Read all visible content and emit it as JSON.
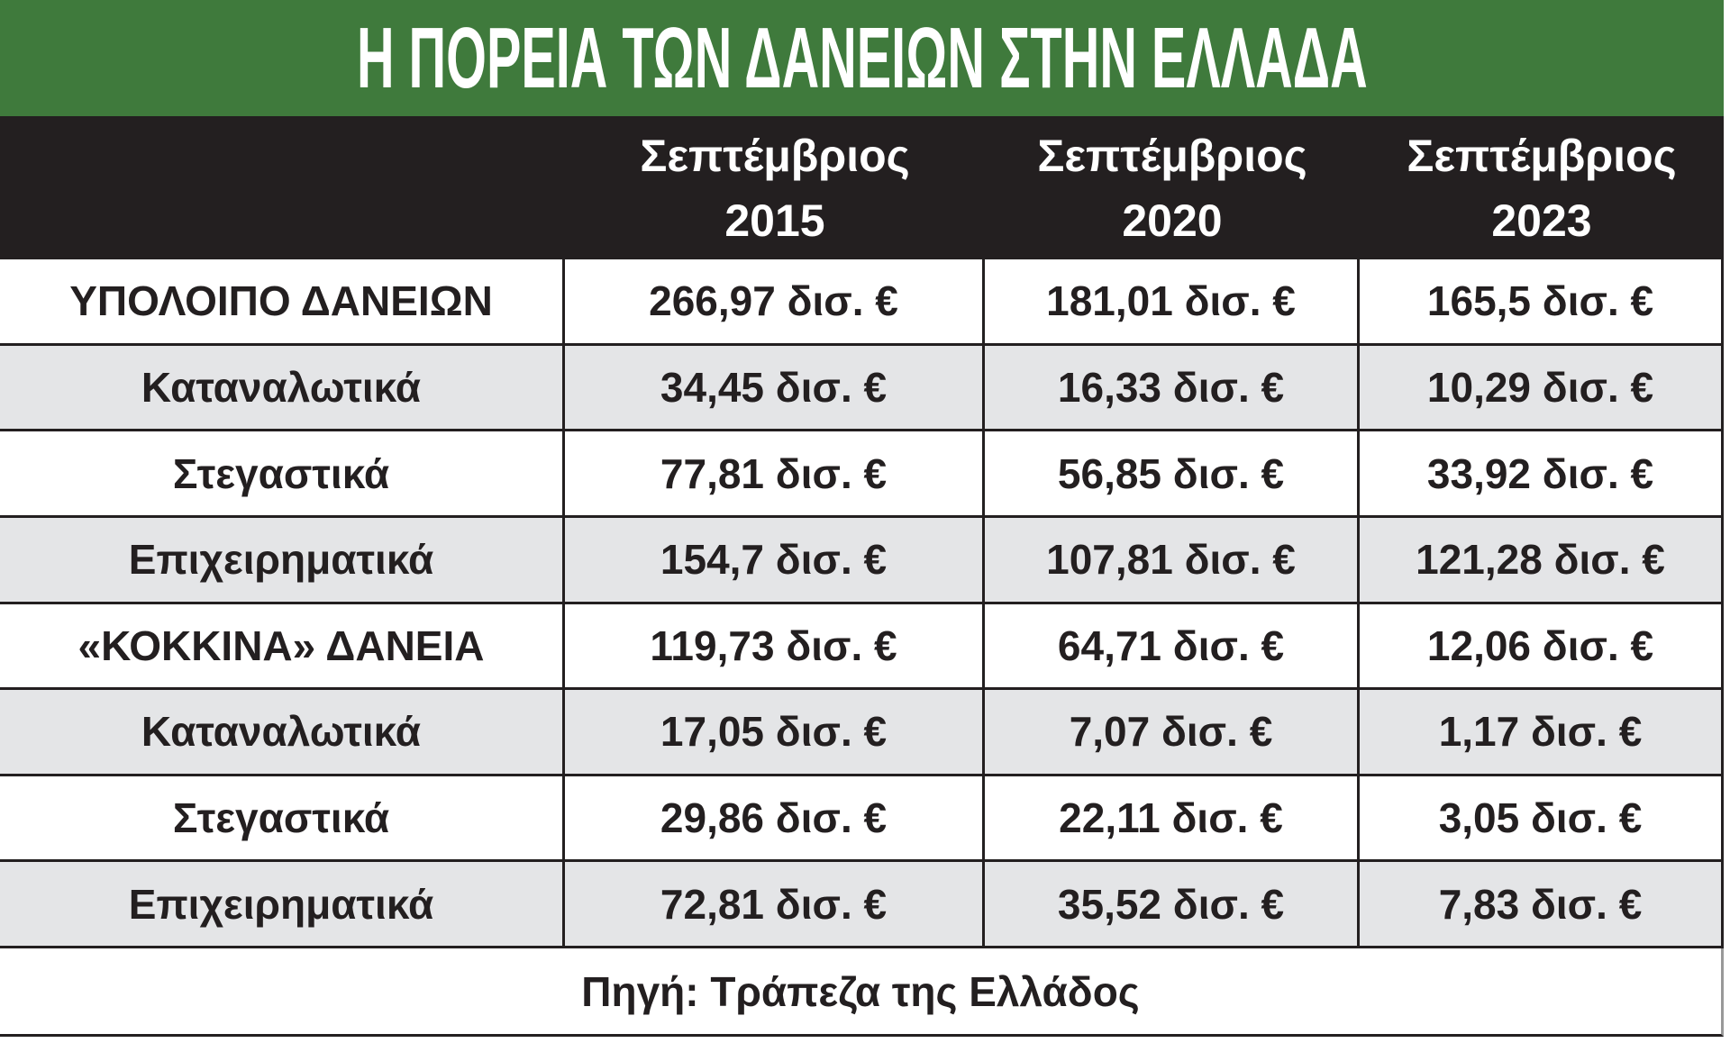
{
  "header": {
    "title": "Η ΠΟΡΕΙΑ ΤΩΝ ΔΑΝΕΙΩΝ ΣΤΗΝ ΕΛΛΑΔΑ"
  },
  "table": {
    "columns": [
      {
        "month": "Σεπτέμβριος",
        "year": "2015"
      },
      {
        "month": "Σεπτέμβριος",
        "year": "2020"
      },
      {
        "month": "Σεπτέμβριος",
        "year": "2023"
      }
    ],
    "rows": [
      [
        "ΥΠΟΛΟΙΠΟ ΔΑΝΕΙΩΝ",
        "266,97 δισ. €",
        "181,01 δισ. €",
        "165,5 δισ. €"
      ],
      [
        "Καταναλωτικά",
        "34,45 δισ. €",
        "16,33 δισ. €",
        "10,29 δισ. €"
      ],
      [
        "Στεγαστικά",
        "77,81 δισ. €",
        "56,85 δισ. €",
        "33,92 δισ. €"
      ],
      [
        "Επιχειρηματικά",
        "154,7 δισ. €",
        "107,81 δισ. €",
        "121,28 δισ. €"
      ],
      [
        "«ΚΟΚΚΙΝΑ» ΔΑΝΕΙΑ",
        "119,73 δισ. €",
        "64,71 δισ. €",
        "12,06 δισ. €"
      ],
      [
        "Καταναλωτικά",
        "17,05 δισ. €",
        "7,07 δισ. €",
        "1,17 δισ. €"
      ],
      [
        "Στεγαστικά",
        "29,86 δισ. €",
        "22,11 δισ. €",
        "3,05 δισ. €"
      ],
      [
        "Επιχειρηματικά",
        "72,81 δισ. €",
        "35,52 δισ. €",
        "7,83 δισ. €"
      ]
    ]
  },
  "footer": {
    "source": "Πηγή: Τράπεζα της Ελλάδος"
  }
}
